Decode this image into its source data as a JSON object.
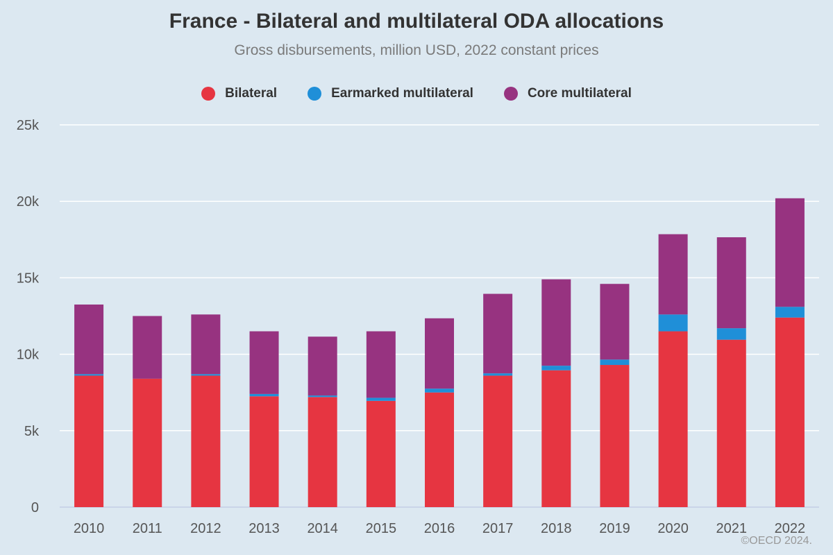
{
  "chart_data": {
    "type": "bar",
    "stacked": true,
    "title": "France - Bilateral and multilateral ODA allocations",
    "subtitle": "Gross disbursements, million USD, 2022 constant prices",
    "categories": [
      "2010",
      "2011",
      "2012",
      "2013",
      "2014",
      "2015",
      "2016",
      "2017",
      "2018",
      "2019",
      "2020",
      "2021",
      "2022"
    ],
    "series": [
      {
        "name": "Bilateral",
        "color": "#e63541",
        "values": [
          8600,
          8400,
          8600,
          7250,
          7200,
          6950,
          7500,
          8600,
          8950,
          9300,
          11500,
          10950,
          12400
        ]
      },
      {
        "name": "Earmarked multilateral",
        "color": "#1f8fd8",
        "values": [
          100,
          0,
          100,
          150,
          100,
          200,
          250,
          150,
          300,
          350,
          1100,
          750,
          700
        ]
      },
      {
        "name": "Core multilateral",
        "color": "#973380",
        "values": [
          4550,
          4100,
          3900,
          4100,
          3850,
          4350,
          4600,
          5200,
          5650,
          4950,
          5250,
          5950,
          7100
        ]
      }
    ],
    "y_ticks": [
      {
        "value": 0,
        "label": "0"
      },
      {
        "value": 5000,
        "label": "5k"
      },
      {
        "value": 10000,
        "label": "10k"
      },
      {
        "value": 15000,
        "label": "15k"
      },
      {
        "value": 20000,
        "label": "20k"
      },
      {
        "value": 25000,
        "label": "25k"
      }
    ],
    "ylim": [
      0,
      25000
    ],
    "grid": true,
    "legend_position": "top-center"
  },
  "copyright": "©OECD 2024."
}
